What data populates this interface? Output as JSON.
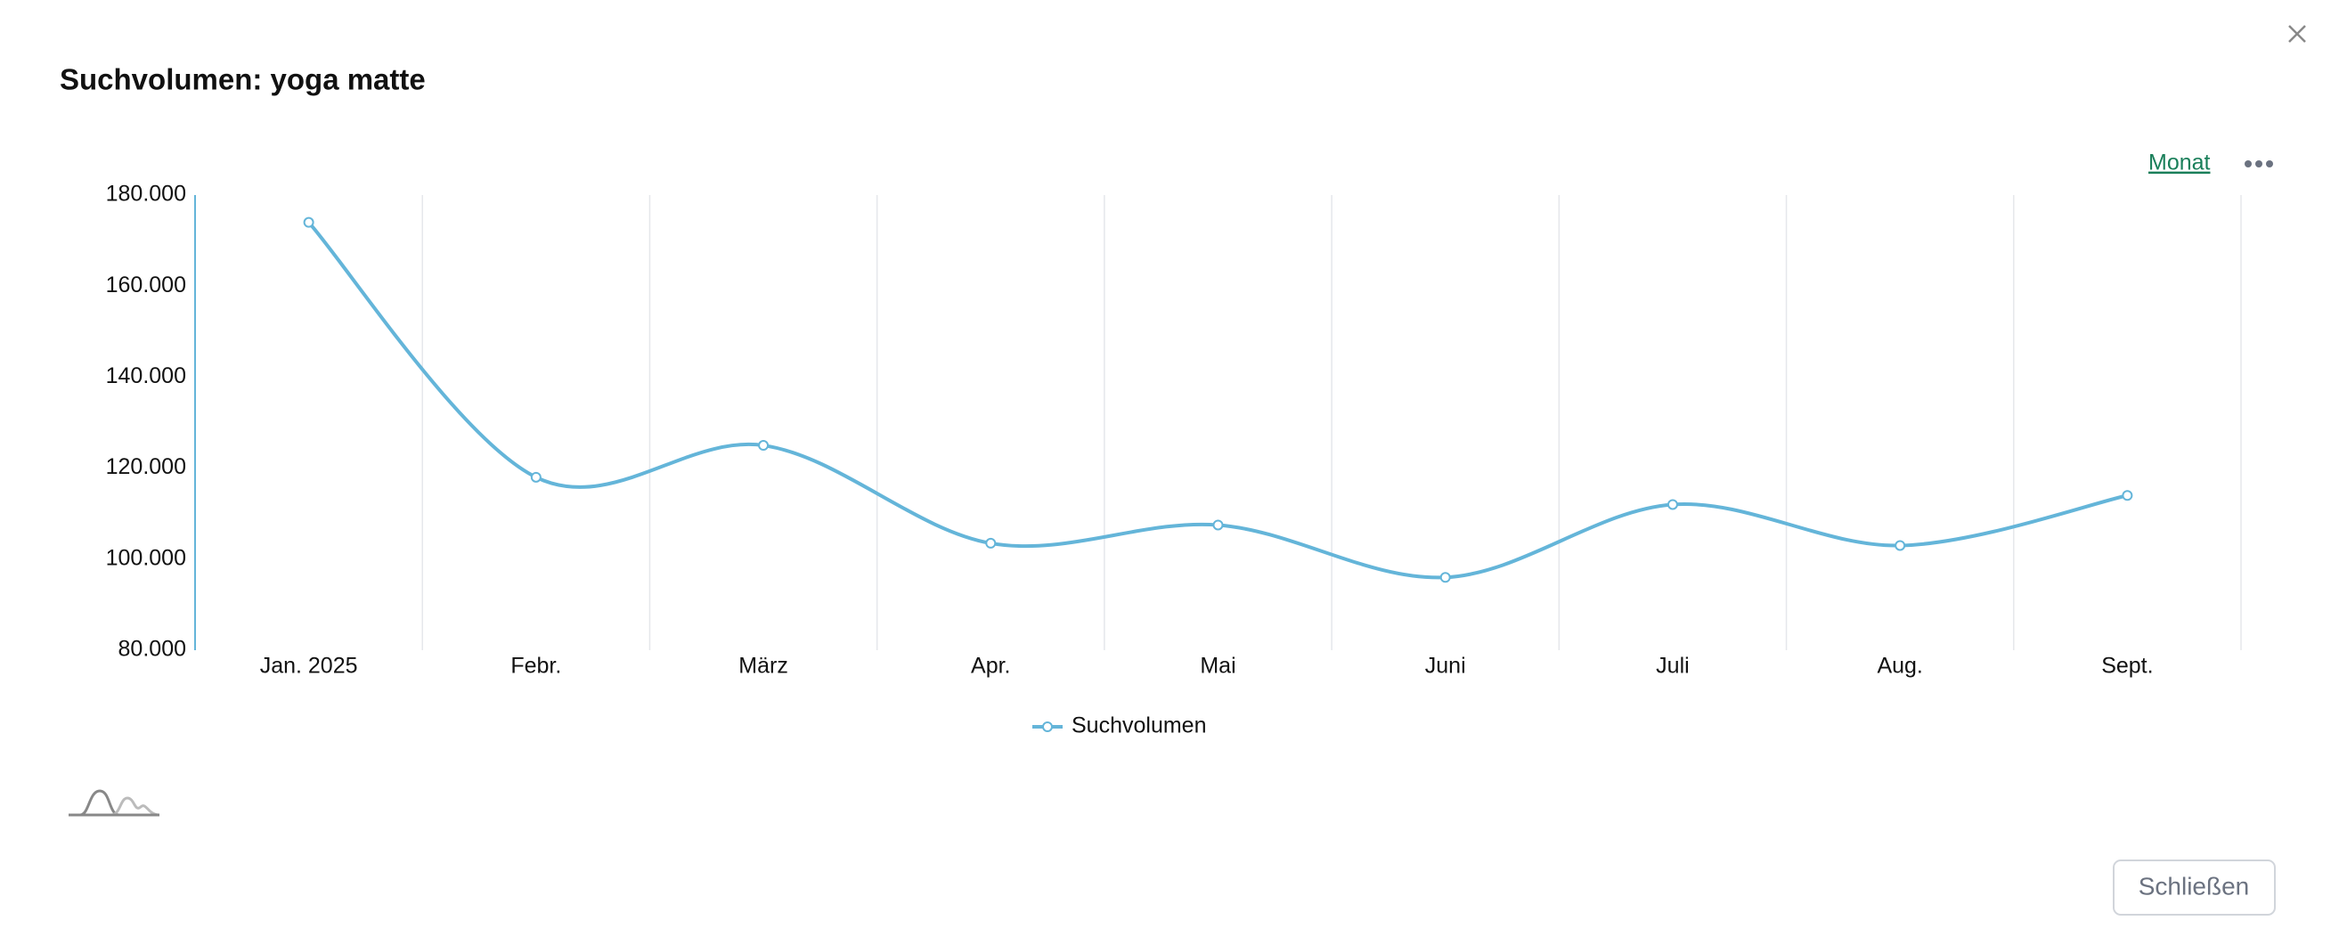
{
  "chart_data": {
    "type": "line",
    "title": "Suchvolumen: yoga matte",
    "categories": [
      "Jan. 2025",
      "Febr.",
      "März",
      "Apr.",
      "Mai",
      "Juni",
      "Juli",
      "Aug.",
      "Sept."
    ],
    "series": [
      {
        "name": "Suchvolumen",
        "color": "#64b5d9",
        "values": [
          174000,
          118000,
          125000,
          103500,
          107500,
          96000,
          112000,
          103000,
          114000
        ]
      }
    ],
    "ylim": [
      80000,
      180000
    ],
    "yticks": [
      {
        "value": 80000,
        "label": "80.000"
      },
      {
        "value": 100000,
        "label": "100.000"
      },
      {
        "value": 120000,
        "label": "120.000"
      },
      {
        "value": 140000,
        "label": "140.000"
      },
      {
        "value": 160000,
        "label": "160.000"
      },
      {
        "value": 180000,
        "label": "180.000"
      }
    ],
    "grid": true,
    "period": "Monat",
    "close_button": "Schließen"
  }
}
